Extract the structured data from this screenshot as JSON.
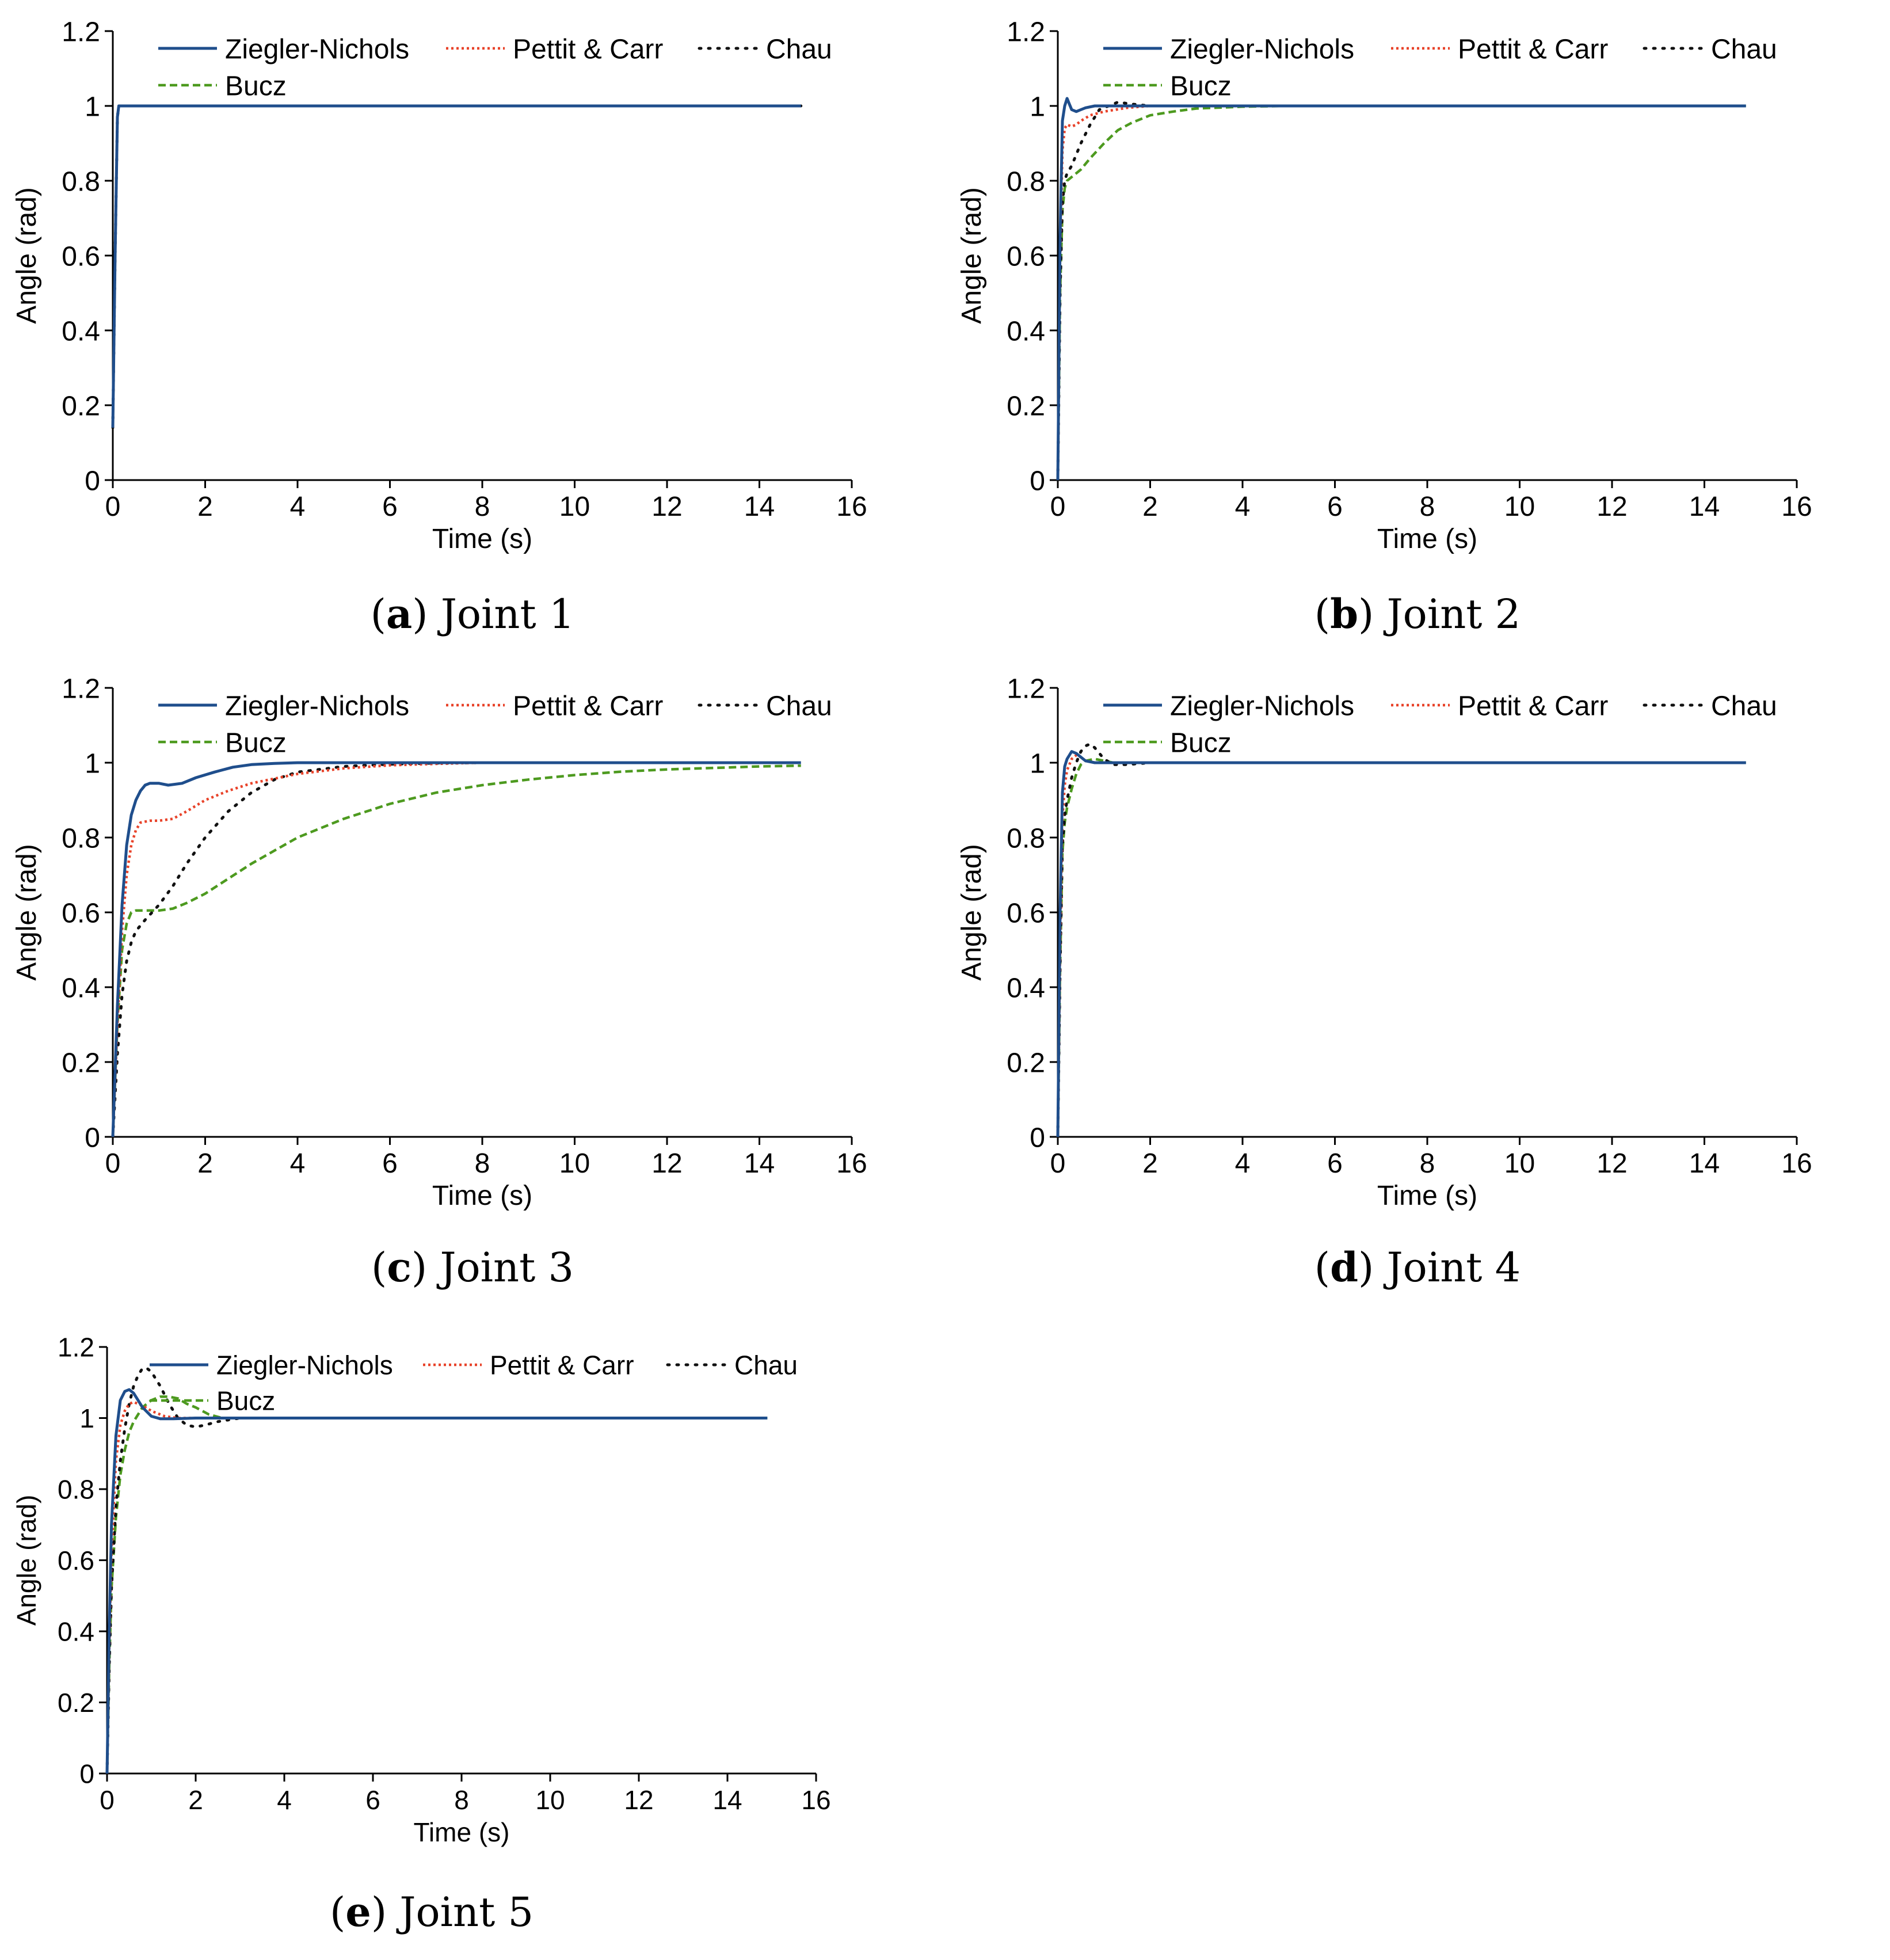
{
  "chart_data": [
    {
      "type": "line",
      "caption_letter": "a",
      "caption_text": "Joint 1",
      "xlabel": "Time (s)",
      "ylabel": "Angle (rad)",
      "xlim": [
        0,
        16
      ],
      "ylim": [
        0,
        1.2
      ],
      "xticks": [
        0,
        2,
        4,
        6,
        8,
        10,
        12,
        14,
        16
      ],
      "xtick_labels": [
        "0",
        "2",
        "4",
        "6",
        "8",
        "10",
        "12",
        "14",
        "16"
      ],
      "yticks": [
        0,
        0.2,
        0.4,
        0.6,
        0.8,
        1,
        1.2
      ],
      "ytick_labels": [
        "0",
        "0.2",
        "0.4",
        "0.6",
        "0.8",
        "1",
        "1.2"
      ],
      "legend": [
        "Ziegler-Nichols",
        "Pettit & Carr",
        "Chau",
        "Bucz"
      ],
      "series": [
        {
          "name": "Ziegler-Nichols",
          "color": "#1f4e8c",
          "dash": "solid",
          "x": [
            0,
            0.05,
            0.1,
            0.13,
            1,
            5,
            10,
            14.9
          ],
          "y": [
            0.14,
            0.6,
            0.97,
            1.0,
            1.0,
            1.0,
            1.0,
            1.0
          ]
        },
        {
          "name": "Pettit & Carr",
          "color": "#e8432a",
          "dash": "dotted",
          "x": [
            0,
            0.05,
            0.1,
            0.13,
            1,
            5,
            10,
            14.9
          ],
          "y": [
            0.14,
            0.6,
            0.97,
            1.0,
            1.0,
            1.0,
            1.0,
            1.0
          ]
        },
        {
          "name": "Chau",
          "color": "#111111",
          "dash": "dots",
          "x": [
            0,
            0.05,
            0.1,
            0.13,
            1,
            5,
            10,
            14.9
          ],
          "y": [
            0.14,
            0.6,
            0.97,
            1.0,
            1.0,
            1.0,
            1.0,
            1.0
          ]
        },
        {
          "name": "Bucz",
          "color": "#4d9a1f",
          "dash": "dashed",
          "x": [
            0,
            0.05,
            0.1,
            0.13,
            1,
            5,
            10,
            14.9
          ],
          "y": [
            0.14,
            0.6,
            0.97,
            1.0,
            1.0,
            1.0,
            1.0,
            1.0
          ]
        }
      ]
    },
    {
      "type": "line",
      "caption_letter": "b",
      "caption_text": "Joint 2",
      "xlabel": "Time (s)",
      "ylabel": "Angle (rad)",
      "xlim": [
        0,
        16
      ],
      "ylim": [
        0,
        1.2
      ],
      "xticks": [
        0,
        2,
        4,
        6,
        8,
        10,
        12,
        14,
        16
      ],
      "xtick_labels": [
        "0",
        "2",
        "4",
        "6",
        "8",
        "10",
        "12",
        "14",
        "16"
      ],
      "yticks": [
        0,
        0.2,
        0.4,
        0.6,
        0.8,
        1,
        1.2
      ],
      "ytick_labels": [
        "0",
        "0.2",
        "0.4",
        "0.6",
        "0.8",
        "1",
        "1.2"
      ],
      "legend": [
        "Ziegler-Nichols",
        "Pettit & Carr",
        "Chau",
        "Bucz"
      ],
      "series": [
        {
          "name": "Ziegler-Nichols",
          "color": "#1f4e8c",
          "dash": "solid",
          "x": [
            0,
            0.05,
            0.1,
            0.15,
            0.2,
            0.25,
            0.3,
            0.4,
            0.5,
            0.6,
            0.8,
            1.0,
            1.5,
            2,
            5,
            14.9
          ],
          "y": [
            0,
            0.65,
            0.96,
            1.0,
            1.02,
            1.005,
            0.99,
            0.985,
            0.99,
            0.995,
            1.0,
            1.0,
            1.0,
            1.0,
            1.0,
            1.0
          ]
        },
        {
          "name": "Pettit & Carr",
          "color": "#e8432a",
          "dash": "dotted",
          "x": [
            0,
            0.05,
            0.1,
            0.15,
            0.2,
            0.3,
            0.4,
            0.5,
            0.7,
            1.0,
            1.5,
            2,
            3,
            5,
            14.9
          ],
          "y": [
            0,
            0.6,
            0.88,
            0.94,
            0.95,
            0.945,
            0.95,
            0.96,
            0.975,
            0.985,
            0.995,
            1.0,
            1.0,
            1.0,
            1.0
          ]
        },
        {
          "name": "Chau",
          "color": "#111111",
          "dash": "dots",
          "x": [
            0,
            0.05,
            0.1,
            0.15,
            0.2,
            0.3,
            0.5,
            0.7,
            0.9,
            1.1,
            1.3,
            1.6,
            2,
            3,
            5,
            14.9
          ],
          "y": [
            0,
            0.5,
            0.74,
            0.8,
            0.82,
            0.84,
            0.9,
            0.95,
            0.99,
            1.0,
            1.01,
            1.005,
            1.0,
            1.0,
            1.0,
            1.0
          ]
        },
        {
          "name": "Bucz",
          "color": "#4d9a1f",
          "dash": "dashed",
          "x": [
            0,
            0.05,
            0.1,
            0.15,
            0.2,
            0.3,
            0.5,
            0.7,
            1.0,
            1.3,
            1.6,
            2,
            2.5,
            3,
            4,
            5,
            14.9
          ],
          "y": [
            0,
            0.5,
            0.72,
            0.78,
            0.8,
            0.81,
            0.83,
            0.86,
            0.9,
            0.935,
            0.955,
            0.975,
            0.985,
            0.993,
            0.998,
            1.0,
            1.0
          ]
        }
      ]
    },
    {
      "type": "line",
      "caption_letter": "c",
      "caption_text": "Joint 3",
      "xlabel": "Time (s)",
      "ylabel": "Angle (rad)",
      "xlim": [
        0,
        16
      ],
      "ylim": [
        0,
        1.2
      ],
      "xticks": [
        0,
        2,
        4,
        6,
        8,
        10,
        12,
        14,
        16
      ],
      "xtick_labels": [
        "0",
        "2",
        "4",
        "6",
        "8",
        "10",
        "12",
        "14",
        "16"
      ],
      "yticks": [
        0,
        0.2,
        0.4,
        0.6,
        0.8,
        1,
        1.2
      ],
      "ytick_labels": [
        "0",
        "0.2",
        "0.4",
        "0.6",
        "0.8",
        "1",
        "1.2"
      ],
      "legend": [
        "Ziegler-Nichols",
        "Pettit & Carr",
        "Chau",
        "Bucz"
      ],
      "series": [
        {
          "name": "Ziegler-Nichols",
          "color": "#1f4e8c",
          "dash": "solid",
          "x": [
            0,
            0.1,
            0.2,
            0.3,
            0.4,
            0.5,
            0.6,
            0.7,
            0.8,
            1.0,
            1.2,
            1.5,
            1.8,
            2.2,
            2.6,
            3.0,
            3.5,
            4,
            5,
            6,
            8,
            14.9
          ],
          "y": [
            0,
            0.35,
            0.62,
            0.78,
            0.86,
            0.9,
            0.925,
            0.94,
            0.945,
            0.945,
            0.94,
            0.945,
            0.96,
            0.975,
            0.988,
            0.995,
            0.998,
            1.0,
            1.0,
            1.0,
            1.0,
            1.0
          ]
        },
        {
          "name": "Pettit & Carr",
          "color": "#e8432a",
          "dash": "dotted",
          "x": [
            0,
            0.1,
            0.2,
            0.3,
            0.4,
            0.5,
            0.6,
            0.8,
            1.0,
            1.3,
            1.6,
            2,
            2.5,
            3,
            4,
            5,
            6,
            7,
            8,
            14.9
          ],
          "y": [
            0,
            0.3,
            0.55,
            0.7,
            0.78,
            0.82,
            0.84,
            0.845,
            0.845,
            0.85,
            0.87,
            0.9,
            0.925,
            0.945,
            0.97,
            0.985,
            0.993,
            0.997,
            1.0,
            1.0
          ]
        },
        {
          "name": "Chau",
          "color": "#111111",
          "dash": "dots",
          "x": [
            0,
            0.1,
            0.2,
            0.3,
            0.4,
            0.5,
            0.7,
            1.0,
            1.3,
            1.6,
            2,
            2.5,
            3,
            3.5,
            4,
            5,
            6,
            7,
            8,
            14.9
          ],
          "y": [
            0,
            0.22,
            0.38,
            0.47,
            0.52,
            0.55,
            0.58,
            0.62,
            0.67,
            0.73,
            0.8,
            0.87,
            0.92,
            0.955,
            0.975,
            0.99,
            0.996,
            0.999,
            1.0,
            1.0
          ]
        },
        {
          "name": "Bucz",
          "color": "#4d9a1f",
          "dash": "dashed",
          "x": [
            0,
            0.1,
            0.2,
            0.3,
            0.4,
            0.5,
            0.7,
            1.0,
            1.3,
            1.6,
            2,
            2.5,
            3,
            3.5,
            4,
            5,
            6,
            7,
            8,
            9,
            10,
            11,
            12,
            13,
            14,
            14.9
          ],
          "y": [
            0,
            0.3,
            0.5,
            0.57,
            0.6,
            0.605,
            0.605,
            0.605,
            0.61,
            0.625,
            0.65,
            0.69,
            0.73,
            0.765,
            0.8,
            0.85,
            0.89,
            0.92,
            0.94,
            0.955,
            0.967,
            0.976,
            0.982,
            0.986,
            0.99,
            0.992
          ]
        }
      ]
    },
    {
      "type": "line",
      "caption_letter": "d",
      "caption_text": "Joint 4",
      "xlabel": "Time (s)",
      "ylabel": "Angle (rad)",
      "xlim": [
        0,
        16
      ],
      "ylim": [
        0,
        1.2
      ],
      "xticks": [
        0,
        2,
        4,
        6,
        8,
        10,
        12,
        14,
        16
      ],
      "xtick_labels": [
        "0",
        "2",
        "4",
        "6",
        "8",
        "10",
        "12",
        "14",
        "16"
      ],
      "yticks": [
        0,
        0.2,
        0.4,
        0.6,
        0.8,
        1,
        1.2
      ],
      "ytick_labels": [
        "0",
        "0.2",
        "0.4",
        "0.6",
        "0.8",
        "1",
        "1.2"
      ],
      "legend": [
        "Ziegler-Nichols",
        "Pettit & Carr",
        "Chau",
        "Bucz"
      ],
      "series": [
        {
          "name": "Ziegler-Nichols",
          "color": "#1f4e8c",
          "dash": "solid",
          "x": [
            0,
            0.05,
            0.1,
            0.15,
            0.2,
            0.3,
            0.4,
            0.5,
            0.6,
            0.8,
            1.0,
            1.5,
            14.9
          ],
          "y": [
            0,
            0.6,
            0.92,
            0.99,
            1.01,
            1.03,
            1.025,
            1.015,
            1.005,
            1.0,
            1.0,
            1.0,
            1.0
          ]
        },
        {
          "name": "Pettit & Carr",
          "color": "#e8432a",
          "dash": "dotted",
          "x": [
            0,
            0.05,
            0.1,
            0.15,
            0.2,
            0.3,
            0.4,
            0.5,
            0.6,
            0.8,
            1.0,
            1.5,
            14.9
          ],
          "y": [
            0,
            0.5,
            0.85,
            0.94,
            0.98,
            1.01,
            1.02,
            1.015,
            1.005,
            1.0,
            1.0,
            1.0,
            1.0
          ]
        },
        {
          "name": "Chau",
          "color": "#111111",
          "dash": "dots",
          "x": [
            0,
            0.05,
            0.1,
            0.15,
            0.2,
            0.3,
            0.4,
            0.5,
            0.6,
            0.7,
            0.8,
            1.0,
            1.2,
            1.5,
            2,
            14.9
          ],
          "y": [
            0,
            0.45,
            0.78,
            0.86,
            0.9,
            0.96,
            1.0,
            1.03,
            1.045,
            1.05,
            1.04,
            1.01,
            0.995,
            0.995,
            1.0,
            1.0
          ]
        },
        {
          "name": "Bucz",
          "color": "#4d9a1f",
          "dash": "dashed",
          "x": [
            0,
            0.05,
            0.1,
            0.15,
            0.2,
            0.3,
            0.4,
            0.5,
            0.6,
            0.8,
            1.0,
            1.2,
            1.5,
            2,
            14.9
          ],
          "y": [
            0,
            0.45,
            0.76,
            0.84,
            0.88,
            0.93,
            0.97,
            0.995,
            1.005,
            1.01,
            1.005,
            1.0,
            1.0,
            1.0,
            1.0
          ]
        }
      ]
    },
    {
      "type": "line",
      "caption_letter": "e",
      "caption_text": "Joint 5",
      "xlabel": "Time (s)",
      "ylabel": "Angle (rad)",
      "xlim": [
        0,
        16
      ],
      "ylim": [
        0,
        1.2
      ],
      "xticks": [
        0,
        2,
        4,
        6,
        8,
        10,
        12,
        14,
        16
      ],
      "xtick_labels": [
        "0",
        "2",
        "4",
        "6",
        "8",
        "10",
        "12",
        "14",
        "16"
      ],
      "yticks": [
        0,
        0.2,
        0.4,
        0.6,
        0.8,
        1,
        1.2
      ],
      "ytick_labels": [
        "0",
        "0.2",
        "0.4",
        "0.6",
        "0.8",
        "1",
        "1.2"
      ],
      "legend": [
        "Ziegler-Nichols",
        "Pettit & Carr",
        "Chau",
        "Bucz"
      ],
      "series": [
        {
          "name": "Ziegler-Nichols",
          "color": "#1f4e8c",
          "dash": "solid",
          "x": [
            0,
            0.05,
            0.1,
            0.2,
            0.3,
            0.4,
            0.5,
            0.6,
            0.7,
            0.8,
            1.0,
            1.2,
            1.5,
            2,
            3,
            14.9
          ],
          "y": [
            0,
            0.4,
            0.7,
            0.95,
            1.05,
            1.075,
            1.08,
            1.07,
            1.05,
            1.03,
            1.005,
            0.998,
            0.998,
            1.0,
            1.0,
            1.0
          ]
        },
        {
          "name": "Pettit & Carr",
          "color": "#e8432a",
          "dash": "dotted",
          "x": [
            0,
            0.05,
            0.1,
            0.2,
            0.3,
            0.4,
            0.5,
            0.6,
            0.8,
            1.0,
            1.3,
            1.6,
            2,
            3,
            14.9
          ],
          "y": [
            0,
            0.35,
            0.62,
            0.88,
            0.98,
            1.02,
            1.04,
            1.045,
            1.035,
            1.02,
            1.005,
            1.0,
            1.0,
            1.0,
            1.0
          ]
        },
        {
          "name": "Chau",
          "color": "#111111",
          "dash": "dots",
          "x": [
            0,
            0.05,
            0.1,
            0.2,
            0.3,
            0.4,
            0.5,
            0.6,
            0.7,
            0.8,
            0.9,
            1.0,
            1.2,
            1.4,
            1.6,
            1.8,
            2.0,
            2.2,
            2.5,
            3,
            3.5,
            14.9
          ],
          "y": [
            0,
            0.3,
            0.52,
            0.75,
            0.88,
            0.97,
            1.04,
            1.09,
            1.12,
            1.14,
            1.14,
            1.13,
            1.09,
            1.04,
            1.0,
            0.98,
            0.975,
            0.98,
            0.99,
            1.0,
            1.0,
            1.0
          ]
        },
        {
          "name": "Bucz",
          "color": "#4d9a1f",
          "dash": "dashed",
          "x": [
            0,
            0.05,
            0.1,
            0.2,
            0.3,
            0.4,
            0.5,
            0.6,
            0.8,
            1.0,
            1.2,
            1.4,
            1.6,
            1.8,
            2.0,
            2.3,
            2.6,
            3,
            14.9
          ],
          "y": [
            0,
            0.3,
            0.52,
            0.72,
            0.84,
            0.91,
            0.96,
            0.99,
            1.03,
            1.05,
            1.06,
            1.06,
            1.055,
            1.04,
            1.03,
            1.01,
            1.0,
            1.0,
            1.0
          ]
        }
      ]
    }
  ]
}
